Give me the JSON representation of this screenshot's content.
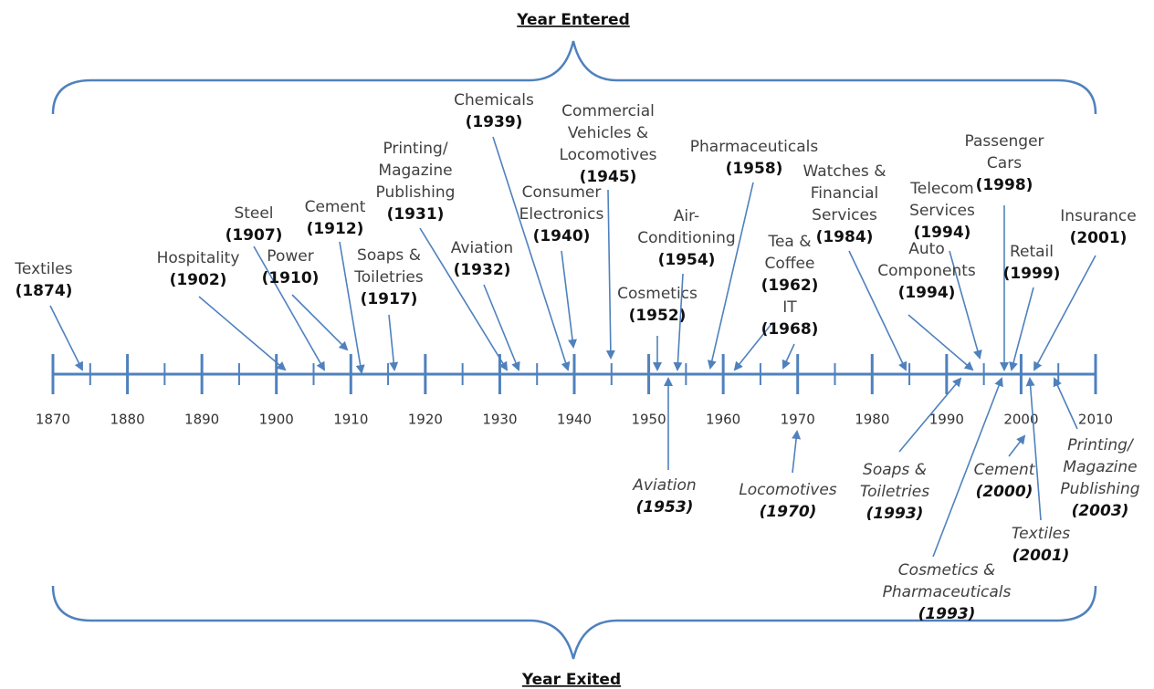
{
  "title_entered": "Year Entered",
  "title_exited": "Year Exited",
  "axis": {
    "ticks": [
      1870,
      1880,
      1890,
      1900,
      1910,
      1920,
      1930,
      1940,
      1950,
      1960,
      1970,
      1980,
      1990,
      2000,
      2010
    ]
  },
  "entered": [
    {
      "name": [
        "Textiles"
      ],
      "year": "(1874)"
    },
    {
      "name": [
        "Hospitality"
      ],
      "year": "(1902)"
    },
    {
      "name": [
        "Steel"
      ],
      "year": "(1907)"
    },
    {
      "name": [
        "Power"
      ],
      "year": "(1910)"
    },
    {
      "name": [
        "Cement"
      ],
      "year": "(1912)"
    },
    {
      "name": [
        "Printing/",
        "Magazine",
        "Publishing"
      ],
      "year": "(1931)"
    },
    {
      "name": [
        "Soaps &",
        "Toiletries"
      ],
      "year": "(1917)"
    },
    {
      "name": [
        "Aviation"
      ],
      "year": "(1932)"
    },
    {
      "name": [
        "Chemicals"
      ],
      "year": "(1939)"
    },
    {
      "name": [
        "Consumer",
        "Electronics"
      ],
      "year": "(1940)"
    },
    {
      "name": [
        "Commercial",
        "Vehicles &",
        "Locomotives"
      ],
      "year": "(1945)"
    },
    {
      "name": [
        "Cosmetics"
      ],
      "year": "(1952)"
    },
    {
      "name": [
        "Air-",
        "Conditioning"
      ],
      "year": "(1954)"
    },
    {
      "name": [
        "Pharmaceuticals"
      ],
      "year": "(1958)"
    },
    {
      "name": [
        "Tea &",
        "Coffee"
      ],
      "year": "(1962)"
    },
    {
      "name": [
        "IT"
      ],
      "year": "(1968)"
    },
    {
      "name": [
        "Watches &",
        "Financial",
        "Services"
      ],
      "year": "(1984)"
    },
    {
      "name": [
        "Telecom",
        "Services"
      ],
      "year": "(1994)"
    },
    {
      "name": [
        "Auto",
        "Components"
      ],
      "year": "(1994)"
    },
    {
      "name": [
        "Passenger",
        "Cars"
      ],
      "year": "(1998)"
    },
    {
      "name": [
        "Retail"
      ],
      "year": "(1999)"
    },
    {
      "name": [
        "Insurance"
      ],
      "year": "(2001)"
    }
  ],
  "exited": [
    {
      "name": [
        "Aviation"
      ],
      "year": "(1953)"
    },
    {
      "name": [
        "Locomotives"
      ],
      "year": "(1970)"
    },
    {
      "name": [
        "Soaps &",
        "Toiletries"
      ],
      "year": "(1993)"
    },
    {
      "name": [
        "Cosmetics &",
        "Pharmaceuticals"
      ],
      "year": "(1993)"
    },
    {
      "name": [
        "Cement"
      ],
      "year": "(2000)"
    },
    {
      "name": [
        "Textiles"
      ],
      "year": "(2001)"
    },
    {
      "name": [
        "Printing/",
        "Magazine",
        "Publishing"
      ],
      "year": "(2003)"
    }
  ]
}
